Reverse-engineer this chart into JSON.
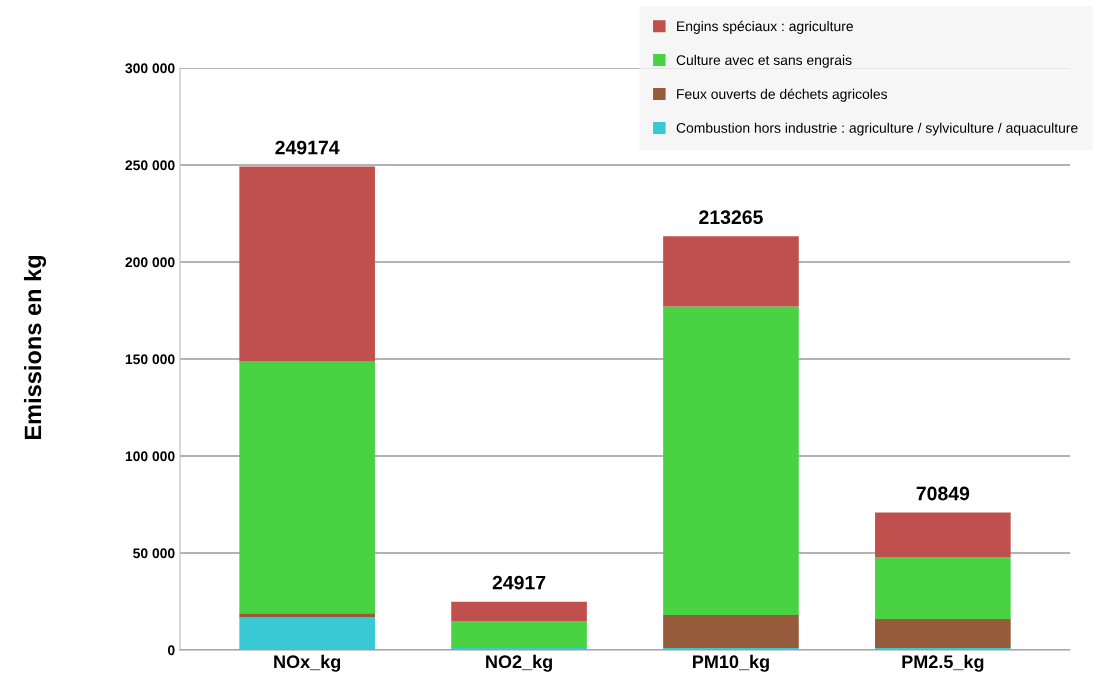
{
  "chart_data": {
    "type": "bar",
    "stacked": true,
    "ylabel": "Emissions en kg",
    "categories": [
      "NOx_kg",
      "NO2_kg",
      "PM10_kg",
      "PM2.5_kg"
    ],
    "series": [
      {
        "name": "Combustion hors industrie : agriculture / sylviculture / aquaculture",
        "color": "#38c9d4",
        "values": [
          16700,
          1000,
          1000,
          1000
        ]
      },
      {
        "name": "Feux ouverts de déchets agricoles",
        "color": "#955b3b",
        "values": [
          2300,
          0,
          17000,
          15000
        ]
      },
      {
        "name": "Culture avec et sans engrais",
        "color": "#49d343",
        "values": [
          130000,
          14000,
          159000,
          32000
        ]
      },
      {
        "name": "Engins spéciaux : agriculture",
        "color": "#c0504d",
        "values": [
          100174,
          9917,
          36265,
          22849
        ]
      }
    ],
    "totals": [
      "249174",
      "24917",
      "213265",
      "70849"
    ],
    "ylim": [
      0,
      300000
    ],
    "yticks": [
      {
        "value": 0,
        "label": "0"
      },
      {
        "value": 50000,
        "label": "50 000"
      },
      {
        "value": 100000,
        "label": "100 000"
      },
      {
        "value": 150000,
        "label": "150 000"
      },
      {
        "value": 200000,
        "label": "200 000"
      },
      {
        "value": 250000,
        "label": "250 000"
      },
      {
        "value": 300000,
        "label": "300 000"
      }
    ],
    "grid": "y",
    "legend": "top right"
  }
}
